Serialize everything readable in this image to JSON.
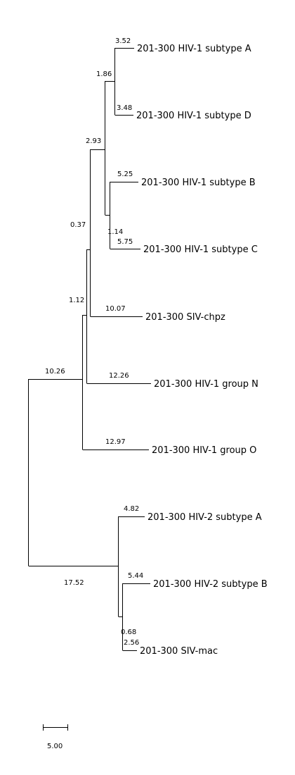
{
  "tree": {
    "leaves": {
      "hiv1_a": "201-300 HIV-1 subtype A",
      "hiv1_d": "201-300 HIV-1 subtype D",
      "hiv1_b": "201-300 HIV-1 subtype B",
      "hiv1_c": "201-300 HIV-1 subtype C",
      "sivcpz": "201-300 SIV-chpz",
      "hiv1_n": "201-300 HIV-1 group N",
      "hiv1_o": "201-300 HIV-1 group O",
      "hiv2_a": "201-300 HIV-2 subtype A",
      "hiv2_b": "201-300 HIV-2 subtype B",
      "sivmac": "201-300 SIV-mac"
    },
    "branch_lengths": {
      "hiv1_a": "3.52",
      "hiv1_d": "3.48",
      "ad_node": "1.86",
      "hiv1_b": "5.25",
      "hiv1_c": "5.75",
      "bc_node": "1.14",
      "abcd_node": "2.93",
      "sivcpz": "10.07",
      "cpz_node": "0.37",
      "hiv1_n": "12.26",
      "n_node": "1.12",
      "hiv1_o": "12.97",
      "hiv1_group": "10.26",
      "hiv2_a": "4.82",
      "hiv2_b": "5.44",
      "sivmac": "2.56",
      "bmac_node": "0.68",
      "hiv2_group": "17.52"
    },
    "scale_bar": {
      "label": "5.00"
    }
  }
}
